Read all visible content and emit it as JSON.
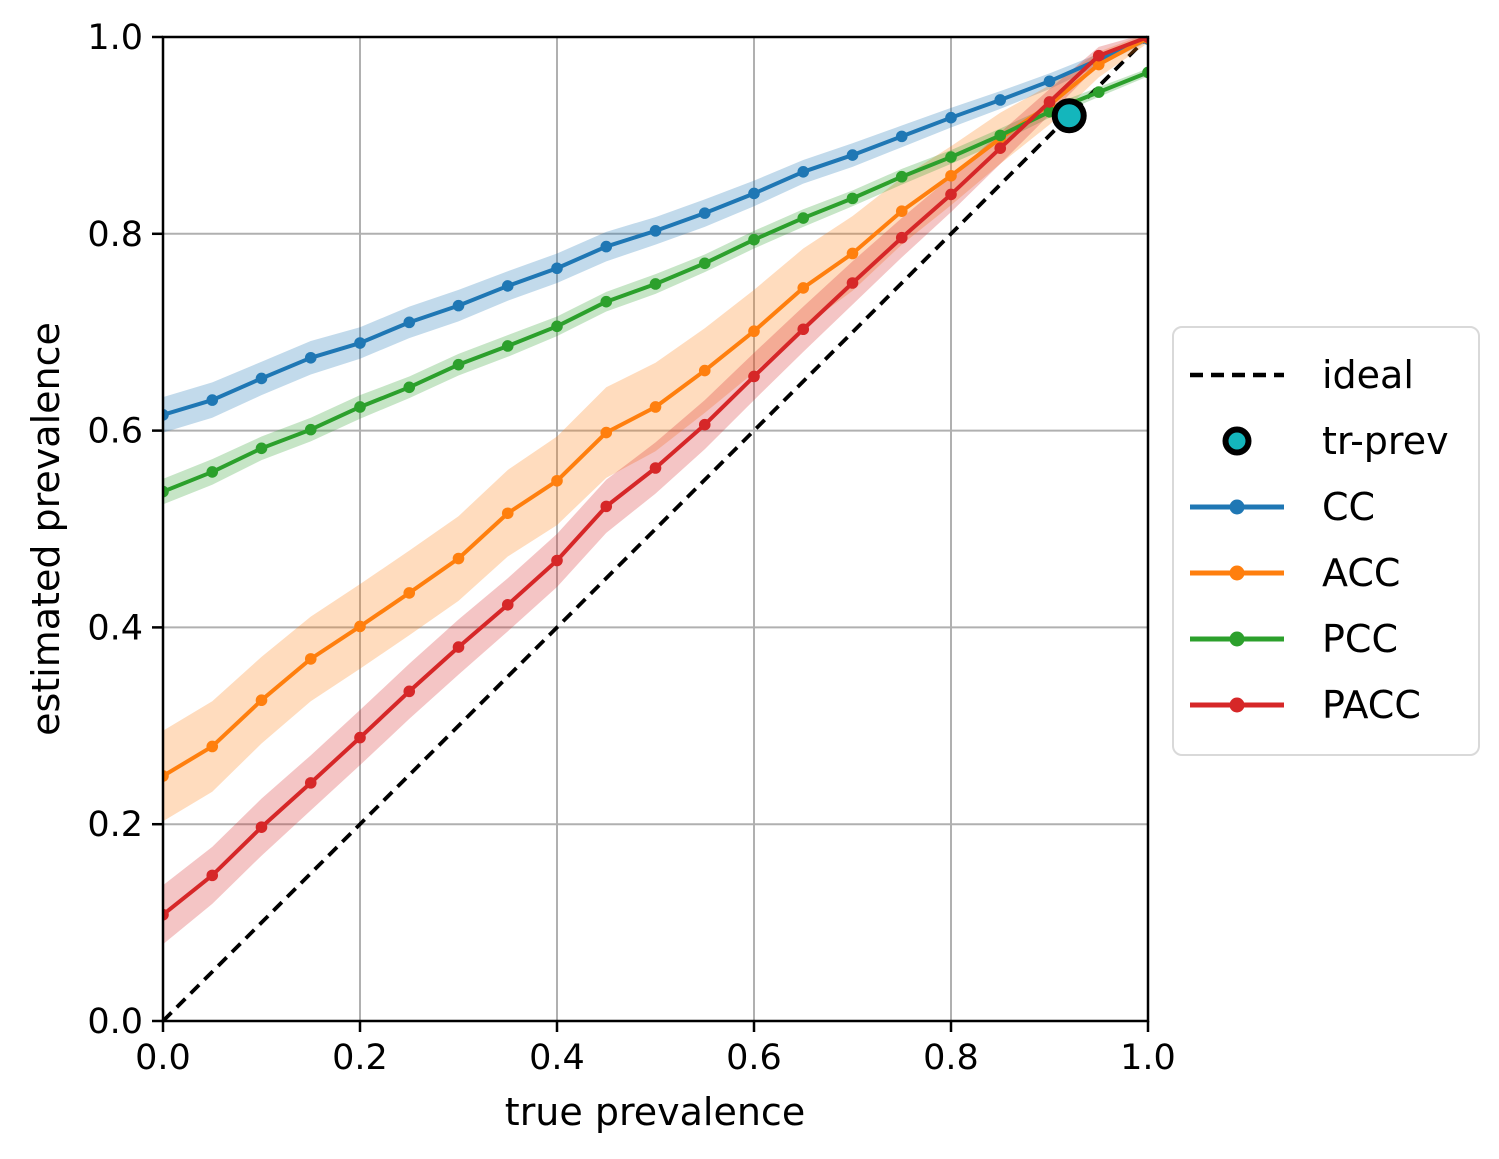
{
  "chart_data": {
    "type": "line",
    "title": "",
    "xlabel": "true prevalence",
    "ylabel": "estimated prevalence",
    "xlim": [
      0.0,
      1.0
    ],
    "ylim": [
      0.0,
      1.0
    ],
    "xticks": [
      "0.0",
      "0.2",
      "0.4",
      "0.6",
      "0.8",
      "1.0"
    ],
    "yticks": [
      "0.0",
      "0.2",
      "0.4",
      "0.6",
      "0.8",
      "1.0"
    ],
    "grid": true,
    "legend_position": "outside-right",
    "x": [
      0.0,
      0.05,
      0.1,
      0.15,
      0.2,
      0.25,
      0.3,
      0.35,
      0.4,
      0.45,
      0.5,
      0.55,
      0.6,
      0.65,
      0.7,
      0.75,
      0.8,
      0.85,
      0.9,
      0.95,
      1.0
    ],
    "series": [
      {
        "name": "CC",
        "color": "#1f77b4",
        "values": [
          0.616,
          0.631,
          0.653,
          0.674,
          0.689,
          0.71,
          0.727,
          0.747,
          0.765,
          0.787,
          0.803,
          0.821,
          0.841,
          0.863,
          0.88,
          0.899,
          0.918,
          0.936,
          0.955,
          0.977,
          0.998
        ],
        "band": [
          0.018,
          0.018,
          0.017,
          0.017,
          0.016,
          0.016,
          0.016,
          0.015,
          0.015,
          0.015,
          0.014,
          0.014,
          0.013,
          0.012,
          0.012,
          0.011,
          0.01,
          0.009,
          0.008,
          0.006,
          0.003
        ]
      },
      {
        "name": "ACC",
        "color": "#ff7f0e",
        "values": [
          0.249,
          0.279,
          0.326,
          0.368,
          0.401,
          0.435,
          0.47,
          0.516,
          0.549,
          0.598,
          0.624,
          0.661,
          0.701,
          0.745,
          0.78,
          0.823,
          0.859,
          0.897,
          0.931,
          0.972,
          0.999
        ],
        "band": [
          0.046,
          0.046,
          0.044,
          0.043,
          0.043,
          0.043,
          0.043,
          0.044,
          0.045,
          0.046,
          0.045,
          0.043,
          0.042,
          0.04,
          0.038,
          0.034,
          0.03,
          0.026,
          0.02,
          0.013,
          0.005
        ]
      },
      {
        "name": "PCC",
        "color": "#2ca02c",
        "values": [
          0.538,
          0.558,
          0.582,
          0.601,
          0.624,
          0.644,
          0.667,
          0.686,
          0.706,
          0.731,
          0.749,
          0.77,
          0.794,
          0.816,
          0.836,
          0.858,
          0.878,
          0.9,
          0.924,
          0.944,
          0.964
        ],
        "band": [
          0.013,
          0.013,
          0.012,
          0.012,
          0.012,
          0.011,
          0.011,
          0.011,
          0.01,
          0.01,
          0.01,
          0.009,
          0.009,
          0.009,
          0.008,
          0.008,
          0.007,
          0.007,
          0.006,
          0.005,
          0.004
        ]
      },
      {
        "name": "PACC",
        "color": "#d62728",
        "values": [
          0.108,
          0.148,
          0.197,
          0.242,
          0.288,
          0.335,
          0.38,
          0.423,
          0.468,
          0.523,
          0.562,
          0.606,
          0.655,
          0.703,
          0.75,
          0.796,
          0.84,
          0.887,
          0.934,
          0.981,
          1.0
        ],
        "band": [
          0.03,
          0.029,
          0.029,
          0.028,
          0.028,
          0.028,
          0.028,
          0.027,
          0.027,
          0.027,
          0.026,
          0.025,
          0.024,
          0.023,
          0.022,
          0.02,
          0.018,
          0.016,
          0.013,
          0.009,
          0.004
        ]
      }
    ],
    "ideal_line": {
      "label": "ideal",
      "from": [
        0.0,
        0.0
      ],
      "to": [
        1.0,
        1.0
      ],
      "color": "#000000",
      "style": "dashed"
    },
    "tr_prev_marker": {
      "label": "tr-prev",
      "x": 0.92,
      "y": 0.92,
      "fill": "#14b6bc",
      "edge": "#000000"
    },
    "legend": [
      {
        "label": "ideal",
        "type": "dashed-line",
        "color": "#000000"
      },
      {
        "label": "tr-prev",
        "type": "circle",
        "color": "#14b6bc"
      },
      {
        "label": "CC",
        "type": "line-marker",
        "color": "#1f77b4"
      },
      {
        "label": "ACC",
        "type": "line-marker",
        "color": "#ff7f0e"
      },
      {
        "label": "PCC",
        "type": "line-marker",
        "color": "#2ca02c"
      },
      {
        "label": "PACC",
        "type": "line-marker",
        "color": "#d62728"
      }
    ],
    "colors": {
      "grid": "#b0b0b0",
      "spine": "#000000",
      "tick_text": "#000000",
      "band_opacity": 0.27
    }
  }
}
